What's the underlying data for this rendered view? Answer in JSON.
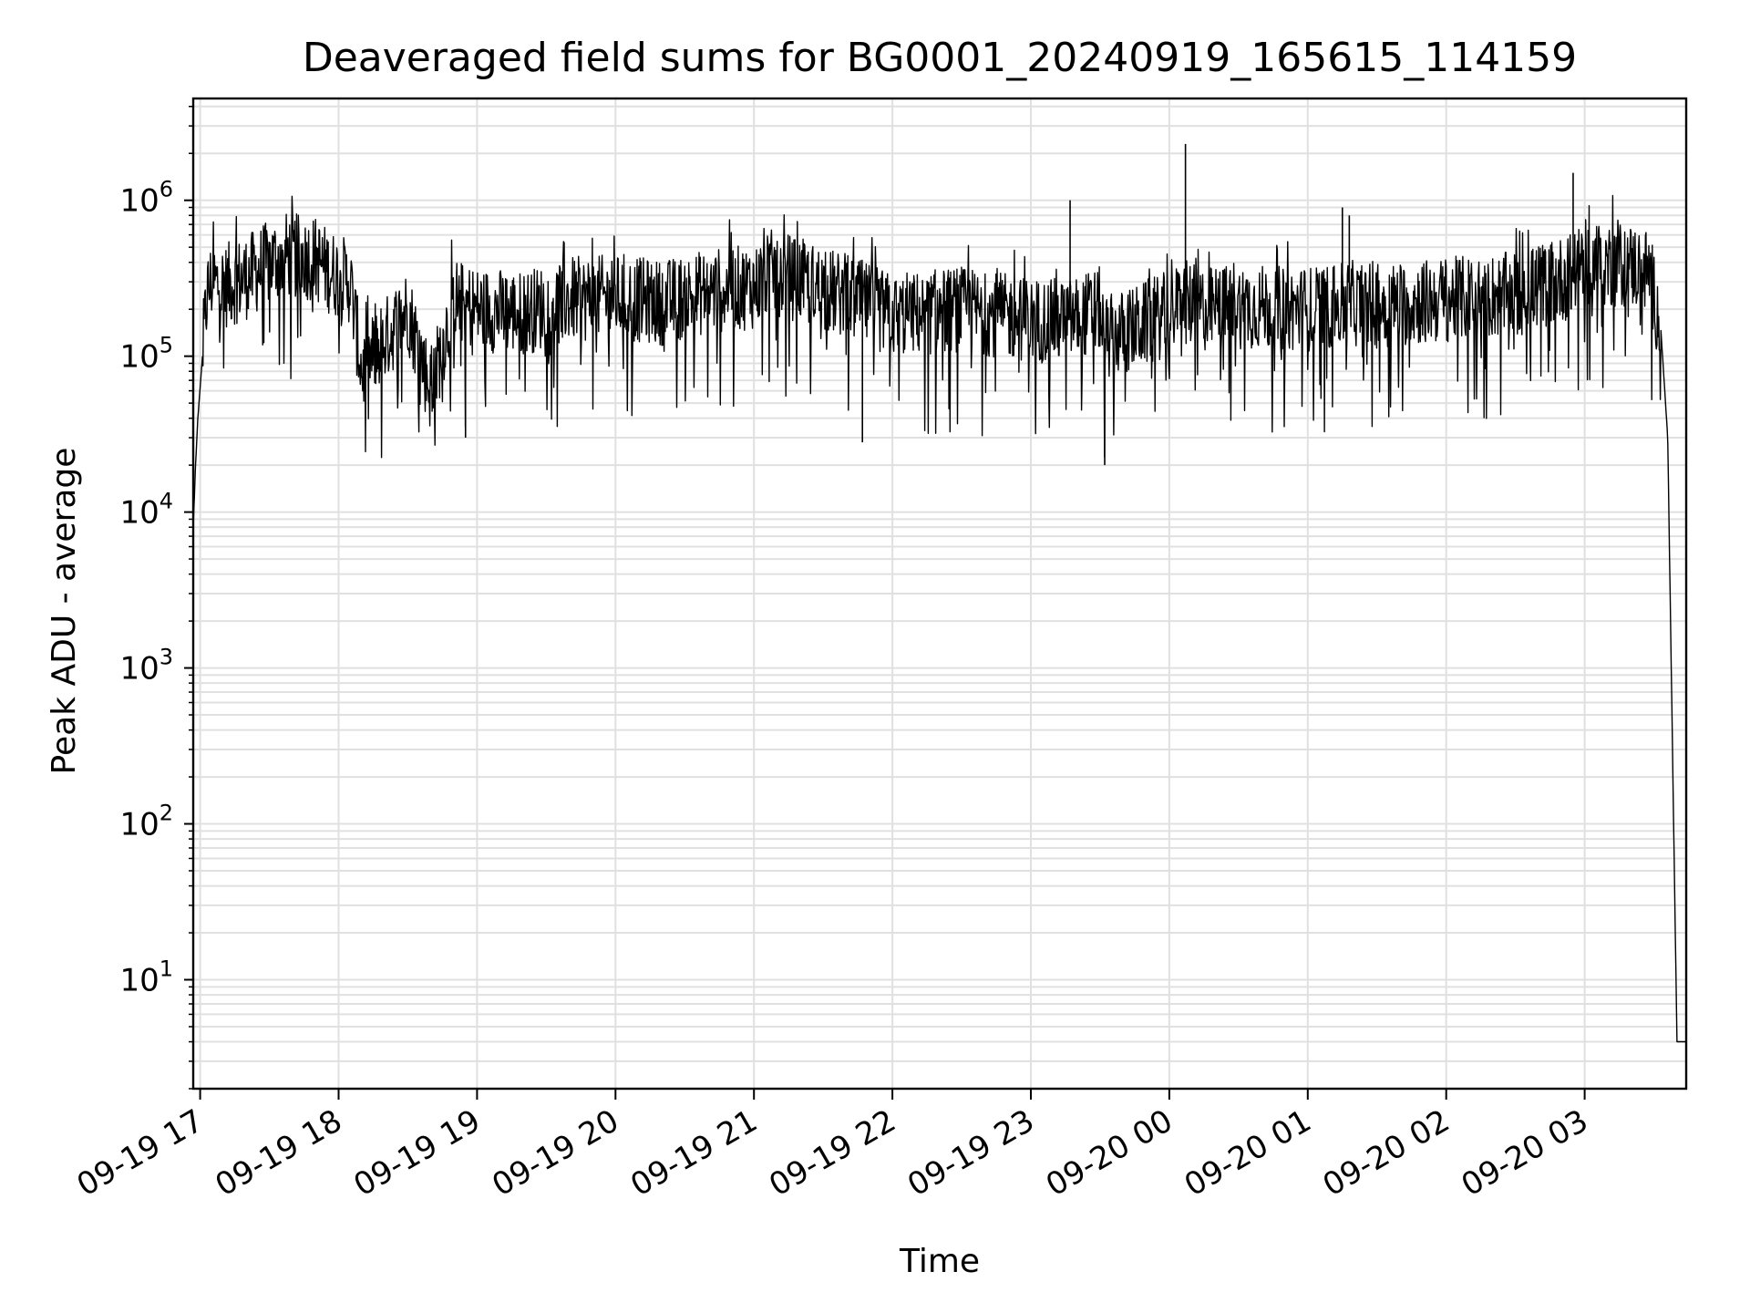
{
  "chart_data": {
    "type": "line",
    "title": "Deaveraged field sums for BG0001_20240919_165615_114159",
    "xlabel": "Time",
    "ylabel": "Peak ADU - average",
    "yscale": "log",
    "ylim": [
      2,
      4500000
    ],
    "xlim": [
      "2024-09-19 16:57",
      "2024-09-20 03:44"
    ],
    "grid": true,
    "line_color": "#000000",
    "grid_color": "#e0e0e0",
    "x_ticks": [
      "2024-09-19 17:00",
      "2024-09-19 18:00",
      "2024-09-19 19:00",
      "2024-09-19 20:00",
      "2024-09-19 21:00",
      "2024-09-19 22:00",
      "2024-09-19 23:00",
      "2024-09-20 00:00",
      "2024-09-20 01:00",
      "2024-09-20 02:00",
      "2024-09-20 03:00"
    ],
    "x_tick_labels": [
      "09-19 17",
      "09-19 18",
      "09-19 19",
      "09-19 20",
      "09-19 21",
      "09-19 22",
      "09-19 23",
      "09-20 00",
      "09-20 01",
      "09-20 02",
      "09-20 03"
    ],
    "y_ticks": [
      10,
      100,
      1000,
      10000,
      100000,
      1000000
    ],
    "y_tick_labels": [
      {
        "base": "10",
        "exp": "1"
      },
      {
        "base": "10",
        "exp": "2"
      },
      {
        "base": "10",
        "exp": "3"
      },
      {
        "base": "10",
        "exp": "4"
      },
      {
        "base": "10",
        "exp": "5"
      },
      {
        "base": "10",
        "exp": "6"
      }
    ],
    "series": [
      {
        "x": [
          "2024-09-19 16:57",
          "2024-09-19 16:58",
          "2024-09-19 16:59",
          "2024-09-19 17:01",
          "2024-09-19 17:03",
          "2024-09-19 17:05",
          "2024-09-19 17:10",
          "2024-09-19 17:20",
          "2024-09-19 17:28",
          "2024-09-19 17:36",
          "2024-09-19 17:50",
          "2024-09-19 17:56",
          "2024-09-19 18:05",
          "2024-09-19 18:10",
          "2024-09-19 18:30",
          "2024-09-19 18:40",
          "2024-09-19 18:50",
          "2024-09-19 19:00",
          "2024-09-19 19:20",
          "2024-09-19 19:40",
          "2024-09-19 20:00",
          "2024-09-19 20:20",
          "2024-09-19 20:40",
          "2024-09-19 21:00",
          "2024-09-19 21:08",
          "2024-09-19 21:30",
          "2024-09-19 21:47",
          "2024-09-19 22:00",
          "2024-09-19 22:30",
          "2024-09-19 23:00",
          "2024-09-19 23:17",
          "2024-09-19 23:30",
          "2024-09-19 23:32",
          "2024-09-19 23:45",
          "2024-09-20 00:00",
          "2024-09-20 00:07",
          "2024-09-20 00:15",
          "2024-09-20 00:30",
          "2024-09-20 01:00",
          "2024-09-20 01:15",
          "2024-09-20 01:18",
          "2024-09-20 01:30",
          "2024-09-20 02:00",
          "2024-09-20 02:30",
          "2024-09-20 02:55",
          "2024-09-20 03:00",
          "2024-09-20 03:20",
          "2024-09-20 03:28",
          "2024-09-20 03:33",
          "2024-09-20 03:36",
          "2024-09-20 03:40",
          "2024-09-20 03:44"
        ],
        "values": [
          8000,
          20000,
          40000,
          100000,
          250000,
          300000,
          280000,
          320000,
          380000,
          450000,
          420000,
          350000,
          300000,
          80000,
          200000,
          60000,
          230000,
          200000,
          190000,
          230000,
          240000,
          220000,
          260000,
          280000,
          350000,
          270000,
          220000,
          180000,
          200000,
          170000,
          170000,
          200000,
          130000,
          150000,
          190000,
          220000,
          200000,
          210000,
          200000,
          210000,
          220000,
          210000,
          230000,
          250000,
          330000,
          400000,
          380000,
          350000,
          150000,
          30000,
          4,
          4
        ]
      }
    ],
    "spikes": [
      {
        "x": "2024-09-19 23:17",
        "y": 1000000
      },
      {
        "x": "2024-09-20 00:07",
        "y": 2300000
      },
      {
        "x": "2024-09-20 01:15",
        "y": 900000
      },
      {
        "x": "2024-09-20 01:18",
        "y": 800000
      },
      {
        "x": "2024-09-20 02:55",
        "y": 1500000
      },
      {
        "x": "2024-09-19 23:32",
        "y": 20000
      },
      {
        "x": "2024-09-19 21:47",
        "y": 28000
      },
      {
        "x": "2024-09-19 18:55",
        "y": 30000
      }
    ]
  }
}
